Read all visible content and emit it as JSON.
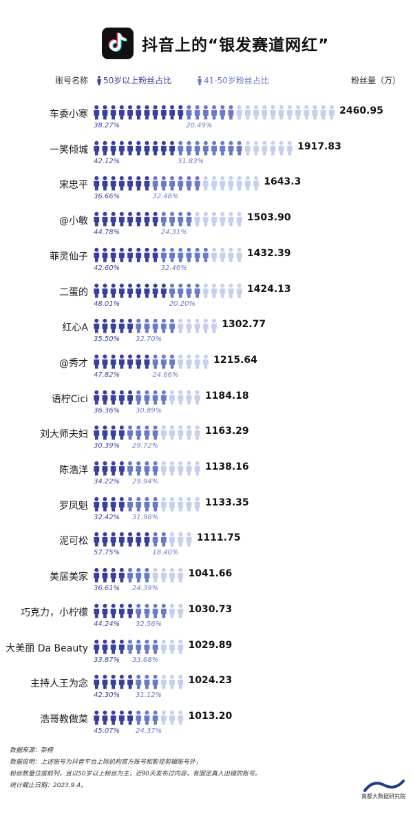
{
  "header": {
    "title": "抖音上的“银发赛道网红”",
    "logo_icon": "tiktok-note-icon"
  },
  "legend": {
    "account_label": "账号名称",
    "series_a_label": "50岁以上粉丝占比",
    "series_b_label": "41-50岁粉丝占比",
    "fans_label": "粉丝量（万）"
  },
  "colors": {
    "series_a": "#3a3f9e",
    "series_b": "#6b7ac8",
    "rest": "#c6d0ee"
  },
  "chart_data": {
    "type": "bar",
    "categories": [
      "车委小寒",
      "一笑倾城",
      "宋忠平",
      "@小敏",
      "菲灵仙子",
      "二蛋的",
      "红心A",
      "@秀才",
      "语柠Cici",
      "刘大师夫妇",
      "陈浩洋",
      "罗凤魁",
      "泥可松",
      "美居美家",
      "巧克力，小柠檬",
      "大美丽 Da Beauty",
      "主持人王为念",
      "浩哥教做菜"
    ],
    "values": [
      2460.95,
      1917.83,
      1643.3,
      1503.9,
      1432.39,
      1424.13,
      1302.77,
      1215.64,
      1184.18,
      1163.29,
      1138.16,
      1133.35,
      1111.75,
      1041.66,
      1030.73,
      1029.89,
      1024.23,
      1013.2
    ],
    "value_labels": [
      "2460.95",
      "1917.83",
      "1643.3",
      "1503.90",
      "1432.39",
      "1424.13",
      "1302.77",
      "1215.64",
      "1184.18",
      "1163.29",
      "1138.16",
      "1133.35",
      "1111.75",
      "1041.66",
      "1030.73",
      "1029.89",
      "1024.23",
      "1013.20"
    ],
    "icon_counts": [
      29,
      24,
      20,
      18,
      18,
      18,
      15,
      14,
      13,
      13,
      13,
      13,
      12,
      11,
      11,
      11,
      11,
      11
    ],
    "series": [
      {
        "name": "50岁以上粉丝占比",
        "values": [
          38.27,
          42.12,
          36.66,
          44.78,
          42.6,
          48.01,
          35.5,
          47.82,
          36.36,
          30.39,
          34.22,
          32.42,
          57.75,
          36.61,
          44.24,
          33.87,
          42.3,
          45.07
        ],
        "labels": [
          "38.27%",
          "42.12%",
          "36.66%",
          "44.78%",
          "42.60%",
          "48.01%",
          "35.50%",
          "47.82%",
          "36.36%",
          "30.39%",
          "34.22%",
          "32.42%",
          "57.75%",
          "36.61%",
          "44.24%",
          "33.87%",
          "42.30%",
          "45.07%"
        ]
      },
      {
        "name": "41-50岁粉丝占比",
        "values": [
          20.49,
          31.83,
          32.48,
          24.31,
          32.46,
          20.2,
          32.7,
          24.66,
          30.89,
          29.72,
          29.94,
          31.98,
          18.4,
          24.39,
          32.56,
          33.68,
          31.12,
          24.37
        ],
        "labels": [
          "20.49%",
          "31.83%",
          "32.48%",
          "24.31%",
          "32.46%",
          "20.20%",
          "32.70%",
          "24.66%",
          "30.89%",
          "29.72%",
          "29.94%",
          "31.98%",
          "18.40%",
          "24.39%",
          "32.56%",
          "33.68%",
          "31.12%",
          "24.37%"
        ]
      }
    ]
  },
  "footer": {
    "lines": [
      "数据来源：新榜",
      "数据说明：上述账号为抖音平台上除机构官方账号和影视剪辑账号外，",
      "粉丝数量位居前列，且以50岁以上粉丝为主，近90天发布过内容，有固定真人出镜的账号。",
      "统计截止日期：2023.9.4。"
    ],
    "org": "南都大数据研究院"
  }
}
